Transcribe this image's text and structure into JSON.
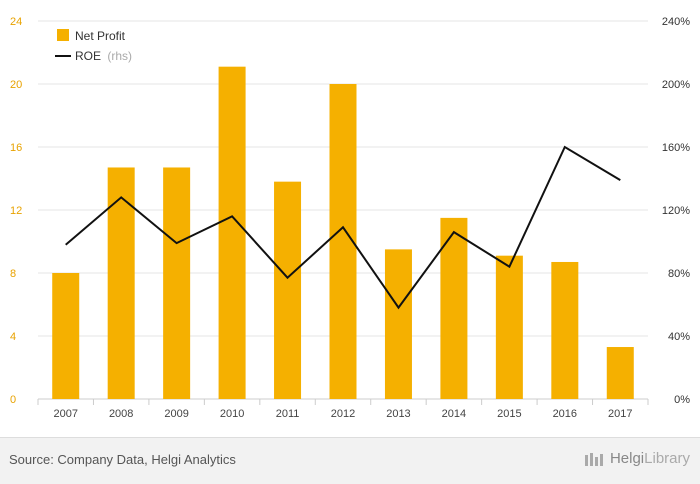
{
  "chart_data": {
    "type": "bar+line",
    "categories": [
      "2007",
      "2008",
      "2009",
      "2010",
      "2011",
      "2012",
      "2013",
      "2014",
      "2015",
      "2016",
      "2017"
    ],
    "series": [
      {
        "name": "Net Profit",
        "type": "bar",
        "axis": "left",
        "color": "#f5b000",
        "values": [
          8.0,
          14.7,
          14.7,
          21.1,
          13.8,
          20.0,
          9.5,
          11.5,
          9.1,
          8.7,
          3.3
        ]
      },
      {
        "name": "ROE",
        "note": "(rhs)",
        "type": "line",
        "axis": "right",
        "color": "#111111",
        "values": [
          98,
          128,
          99,
          116,
          77,
          109,
          58,
          106,
          84,
          160,
          139
        ]
      }
    ],
    "y_left": {
      "min": 0,
      "max": 24,
      "ticks": [
        "0",
        "4",
        "8",
        "12",
        "16",
        "20",
        "24"
      ]
    },
    "y_right": {
      "min": 0,
      "max": 240,
      "ticks": [
        "0%",
        "40%",
        "80%",
        "120%",
        "160%",
        "200%",
        "240%"
      ]
    },
    "grid": true,
    "legend": "top-left"
  },
  "footer": {
    "source": "Source: Company Data, Helgi Analytics",
    "brand_part1": "Helgi",
    "brand_part2": "Library"
  }
}
